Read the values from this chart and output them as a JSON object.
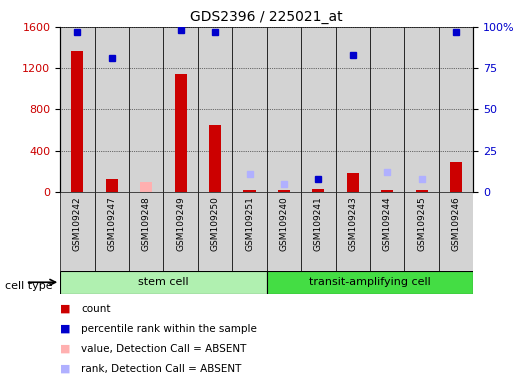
{
  "title": "GDS2396 / 225021_at",
  "samples": [
    "GSM109242",
    "GSM109247",
    "GSM109248",
    "GSM109249",
    "GSM109250",
    "GSM109251",
    "GSM109240",
    "GSM109241",
    "GSM109243",
    "GSM109244",
    "GSM109245",
    "GSM109246"
  ],
  "count_values": [
    1370,
    130,
    30,
    1140,
    650,
    20,
    15,
    30,
    185,
    20,
    20,
    295
  ],
  "percentile_values": [
    97,
    81,
    null,
    98,
    97,
    null,
    null,
    8,
    83,
    null,
    null,
    97
  ],
  "absent_count_values": [
    null,
    null,
    95,
    null,
    null,
    null,
    null,
    null,
    null,
    null,
    null,
    null
  ],
  "absent_rank_values": [
    null,
    null,
    null,
    null,
    null,
    11,
    5,
    null,
    null,
    12,
    8,
    null
  ],
  "ylim_left": [
    0,
    1600
  ],
  "ylim_right": [
    0,
    100
  ],
  "yticks_left": [
    0,
    400,
    800,
    1200,
    1600
  ],
  "yticks_right": [
    0,
    25,
    50,
    75,
    100
  ],
  "bar_color": "#cc0000",
  "blue_color": "#0000cc",
  "absent_count_color": "#ffb0b0",
  "absent_rank_color": "#b0b0ff",
  "bg_color": "#d3d3d3",
  "stem_cell_color": "#b0f0b0",
  "transit_color": "#44dd44",
  "legend_items": [
    {
      "label": "count",
      "color": "#cc0000"
    },
    {
      "label": "percentile rank within the sample",
      "color": "#0000cc"
    },
    {
      "label": "value, Detection Call = ABSENT",
      "color": "#ffb0b0"
    },
    {
      "label": "rank, Detection Call = ABSENT",
      "color": "#b0b0ff"
    }
  ]
}
